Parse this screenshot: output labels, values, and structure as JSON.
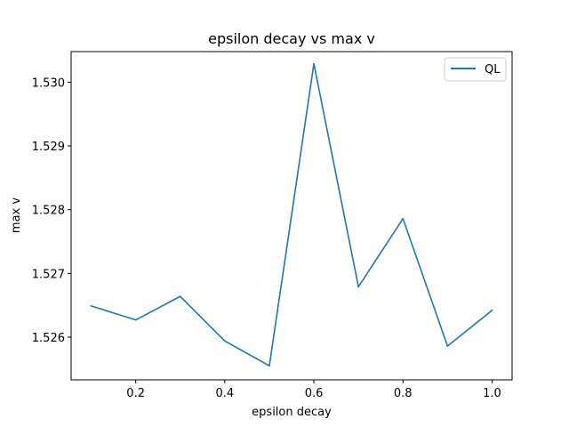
{
  "chart_data": {
    "type": "line",
    "title": "epsilon decay vs max v",
    "xlabel": "epsilon decay",
    "ylabel": "max v",
    "xlim": [
      0.055,
      1.045
    ],
    "ylim": [
      1.52533,
      1.53048
    ],
    "x_ticks": [
      0.2,
      0.4,
      0.6,
      0.8,
      1.0
    ],
    "x_tick_labels": [
      "0.2",
      "0.4",
      "0.6",
      "0.8",
      "1.0"
    ],
    "y_ticks": [
      1.526,
      1.527,
      1.528,
      1.529,
      1.53
    ],
    "y_tick_labels": [
      "1.526",
      "1.527",
      "1.528",
      "1.529",
      "1.530"
    ],
    "grid": false,
    "legend_position": "top-right",
    "series": [
      {
        "name": "QL",
        "color": "#1f77b4",
        "x": [
          0.1,
          0.2,
          0.3,
          0.4,
          0.5,
          0.6,
          0.7,
          0.8,
          0.9,
          1.0
        ],
        "y": [
          1.52649,
          1.52627,
          1.52664,
          1.52594,
          1.52555,
          1.53029,
          1.52679,
          1.52786,
          1.52586,
          1.52642
        ]
      }
    ]
  }
}
